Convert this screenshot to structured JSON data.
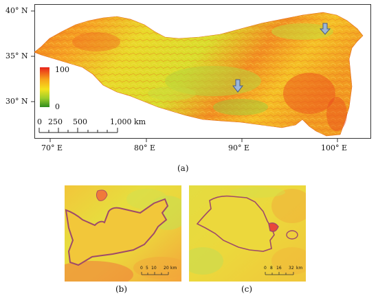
{
  "map_a": {
    "caption": "(a)",
    "lat_ticks": [
      "40° N",
      "35° N",
      "30° N"
    ],
    "lon_ticks": [
      "70° E",
      "80° E",
      "90° E",
      "100° E"
    ],
    "legend": {
      "max": "100",
      "min": "0",
      "colors": [
        "#e8231b",
        "#f7a21a",
        "#f4e21d",
        "#9ccd2a",
        "#2e8b1e"
      ]
    },
    "scale": {
      "labels": [
        "0",
        "250",
        "500",
        "1,000 km"
      ]
    }
  },
  "map_b": {
    "caption": "(b)",
    "scale": {
      "labels": [
        "0",
        "5",
        "10",
        "20",
        "km"
      ]
    }
  },
  "map_c": {
    "caption": "(c)",
    "scale": {
      "labels": [
        "0",
        "8",
        "16",
        "32",
        "km"
      ]
    }
  }
}
